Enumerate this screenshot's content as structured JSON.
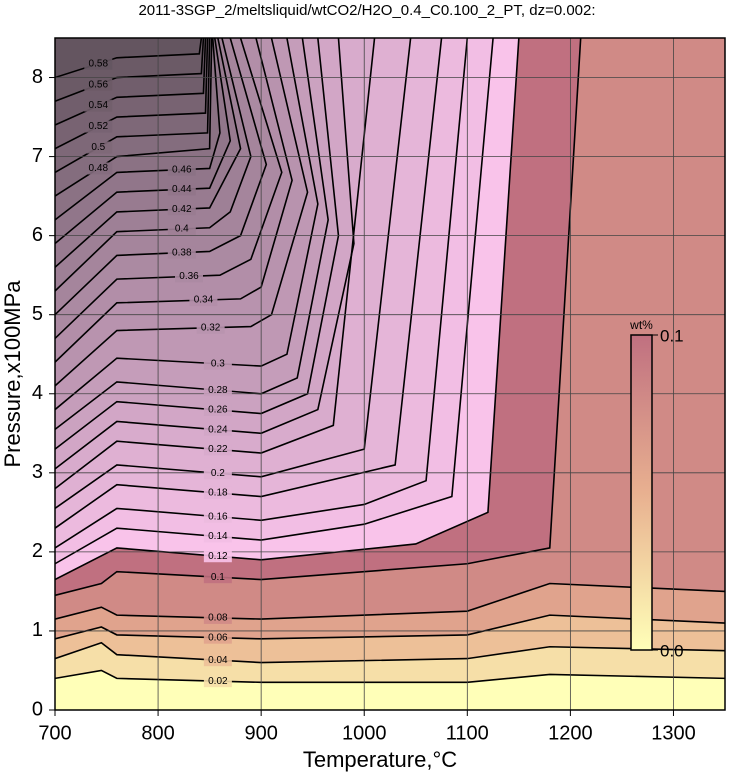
{
  "chart_data": {
    "type": "contour",
    "title": "2011-3SGP_2/meltsliquid/wtCO2/H2O_0.4_C0.100_2_PT, dz=0.002:",
    "x_label": "Temperature,°C",
    "y_label": "Pressure,x100MPa",
    "xlim": [
      700,
      1350
    ],
    "ylim": [
      0,
      8.5
    ],
    "xticks": [
      700,
      800,
      900,
      1000,
      1100,
      1200,
      1300
    ],
    "yticks": [
      0,
      1,
      2,
      3,
      4,
      5,
      6,
      7,
      8
    ],
    "grid": true,
    "colorbar": {
      "label": "wt%",
      "lim": [
        0,
        0.1
      ],
      "ticks": [
        {
          "value": 0,
          "label": "0.0"
        },
        0.1
      ],
      "colormap": [
        "#ffffb8",
        "#e8b090",
        "#c07080",
        "#ffc8f0"
      ]
    },
    "high_color": "#ffc8f0",
    "contours": [
      {
        "level": 0.02,
        "x": [
          700,
          745,
          760,
          900,
          1100,
          1180,
          1350
        ],
        "y": [
          0.4,
          0.5,
          0.4,
          0.35,
          0.35,
          0.45,
          0.4
        ]
      },
      {
        "level": 0.04,
        "x": [
          700,
          745,
          760,
          900,
          1100,
          1180,
          1350
        ],
        "y": [
          0.65,
          0.85,
          0.7,
          0.6,
          0.65,
          0.8,
          0.75
        ]
      },
      {
        "level": 0.06,
        "x": [
          700,
          745,
          760,
          900,
          1100,
          1180,
          1350
        ],
        "y": [
          0.9,
          1.05,
          0.95,
          0.9,
          0.95,
          1.2,
          1.1
        ]
      },
      {
        "level": 0.08,
        "x": [
          700,
          745,
          760,
          900,
          1100,
          1180,
          1350
        ],
        "y": [
          1.15,
          1.3,
          1.2,
          1.15,
          1.25,
          1.6,
          1.5
        ]
      },
      {
        "level": 0.1,
        "x": [
          700,
          745,
          760,
          900,
          1100,
          1180,
          1210
        ],
        "y": [
          1.45,
          1.6,
          1.75,
          1.65,
          1.85,
          2.05,
          8.5
        ]
      },
      {
        "level": 0.12,
        "x": [
          700,
          760,
          900,
          1050,
          1120,
          1150
        ],
        "y": [
          1.65,
          2.05,
          1.9,
          2.1,
          2.5,
          8.5
        ]
      },
      {
        "level": 0.14,
        "x": [
          700,
          760,
          900,
          1000,
          1085,
          1125
        ],
        "y": [
          1.85,
          2.3,
          2.15,
          2.35,
          2.7,
          8.5
        ]
      },
      {
        "level": 0.16,
        "x": [
          700,
          760,
          900,
          1000,
          1060,
          1100
        ],
        "y": [
          2.05,
          2.55,
          2.4,
          2.6,
          2.9,
          8.5
        ]
      },
      {
        "level": 0.18,
        "x": [
          700,
          760,
          900,
          1030,
          1075
        ],
        "y": [
          2.3,
          2.85,
          2.7,
          3.1,
          8.5
        ]
      },
      {
        "level": 0.2,
        "x": [
          700,
          760,
          900,
          1000,
          1045
        ],
        "y": [
          2.55,
          3.1,
          2.95,
          3.3,
          8.5
        ]
      },
      {
        "level": 0.22,
        "x": [
          700,
          760,
          900,
          970,
          1010
        ],
        "y": [
          2.8,
          3.4,
          3.25,
          3.6,
          8.5
        ]
      },
      {
        "level": 0.24,
        "x": [
          700,
          760,
          900,
          955,
          990,
          975
        ],
        "y": [
          3.05,
          3.65,
          3.5,
          3.8,
          5.9,
          8.5
        ]
      },
      {
        "level": 0.26,
        "x": [
          700,
          760,
          900,
          945,
          975,
          955
        ],
        "y": [
          3.3,
          3.9,
          3.75,
          4.0,
          6.0,
          8.5
        ]
      },
      {
        "level": 0.28,
        "x": [
          700,
          760,
          900,
          935,
          965,
          940
        ],
        "y": [
          3.55,
          4.15,
          4.0,
          4.2,
          6.2,
          8.5
        ]
      },
      {
        "level": 0.3,
        "x": [
          700,
          760,
          900,
          925,
          955,
          925
        ],
        "y": [
          3.8,
          4.45,
          4.35,
          4.5,
          6.4,
          8.5
        ]
      },
      {
        "level": 0.32,
        "x": [
          700,
          760,
          890,
          910,
          945,
          910
        ],
        "y": [
          4.1,
          4.8,
          4.85,
          5.0,
          6.55,
          8.5
        ]
      },
      {
        "level": 0.34,
        "x": [
          700,
          760,
          880,
          900,
          930,
          895
        ],
        "y": [
          4.4,
          5.15,
          5.2,
          5.35,
          6.7,
          8.5
        ]
      },
      {
        "level": 0.36,
        "x": [
          700,
          760,
          860,
          890,
          920,
          880
        ],
        "y": [
          4.7,
          5.45,
          5.5,
          5.7,
          6.8,
          8.5
        ]
      },
      {
        "level": 0.38,
        "x": [
          700,
          760,
          850,
          880,
          905,
          870
        ],
        "y": [
          5.0,
          5.75,
          5.8,
          6.0,
          6.9,
          8.5
        ]
      },
      {
        "level": 0.4,
        "x": [
          700,
          760,
          850,
          870,
          890,
          862
        ],
        "y": [
          5.3,
          6.05,
          6.1,
          6.3,
          7.0,
          8.5
        ]
      },
      {
        "level": 0.42,
        "x": [
          700,
          760,
          850,
          880,
          858
        ],
        "y": [
          5.6,
          6.3,
          6.35,
          7.1,
          8.5
        ]
      },
      {
        "level": 0.44,
        "x": [
          700,
          760,
          850,
          870,
          855
        ],
        "y": [
          5.9,
          6.55,
          6.6,
          7.2,
          8.5
        ]
      },
      {
        "level": 0.46,
        "x": [
          700,
          760,
          850,
          860,
          853
        ],
        "y": [
          6.2,
          6.8,
          6.85,
          7.3,
          8.5
        ]
      },
      {
        "level": 0.48,
        "x": [
          700,
          760,
          850,
          852
        ],
        "y": [
          6.5,
          7.0,
          7.1,
          8.5
        ]
      },
      {
        "level": 0.5,
        "x": [
          700,
          760,
          848,
          850
        ],
        "y": [
          6.8,
          7.25,
          7.3,
          8.5
        ]
      },
      {
        "level": 0.52,
        "x": [
          700,
          760,
          846,
          848
        ],
        "y": [
          7.1,
          7.5,
          7.55,
          8.5
        ]
      },
      {
        "level": 0.54,
        "x": [
          700,
          760,
          844,
          846
        ],
        "y": [
          7.4,
          7.75,
          7.8,
          8.5
        ]
      },
      {
        "level": 0.56,
        "x": [
          700,
          760,
          842,
          844
        ],
        "y": [
          7.7,
          8.0,
          8.05,
          8.5
        ]
      },
      {
        "level": 0.58,
        "x": [
          700,
          760,
          840,
          842
        ],
        "y": [
          8.0,
          8.25,
          8.3,
          8.5
        ]
      }
    ]
  }
}
